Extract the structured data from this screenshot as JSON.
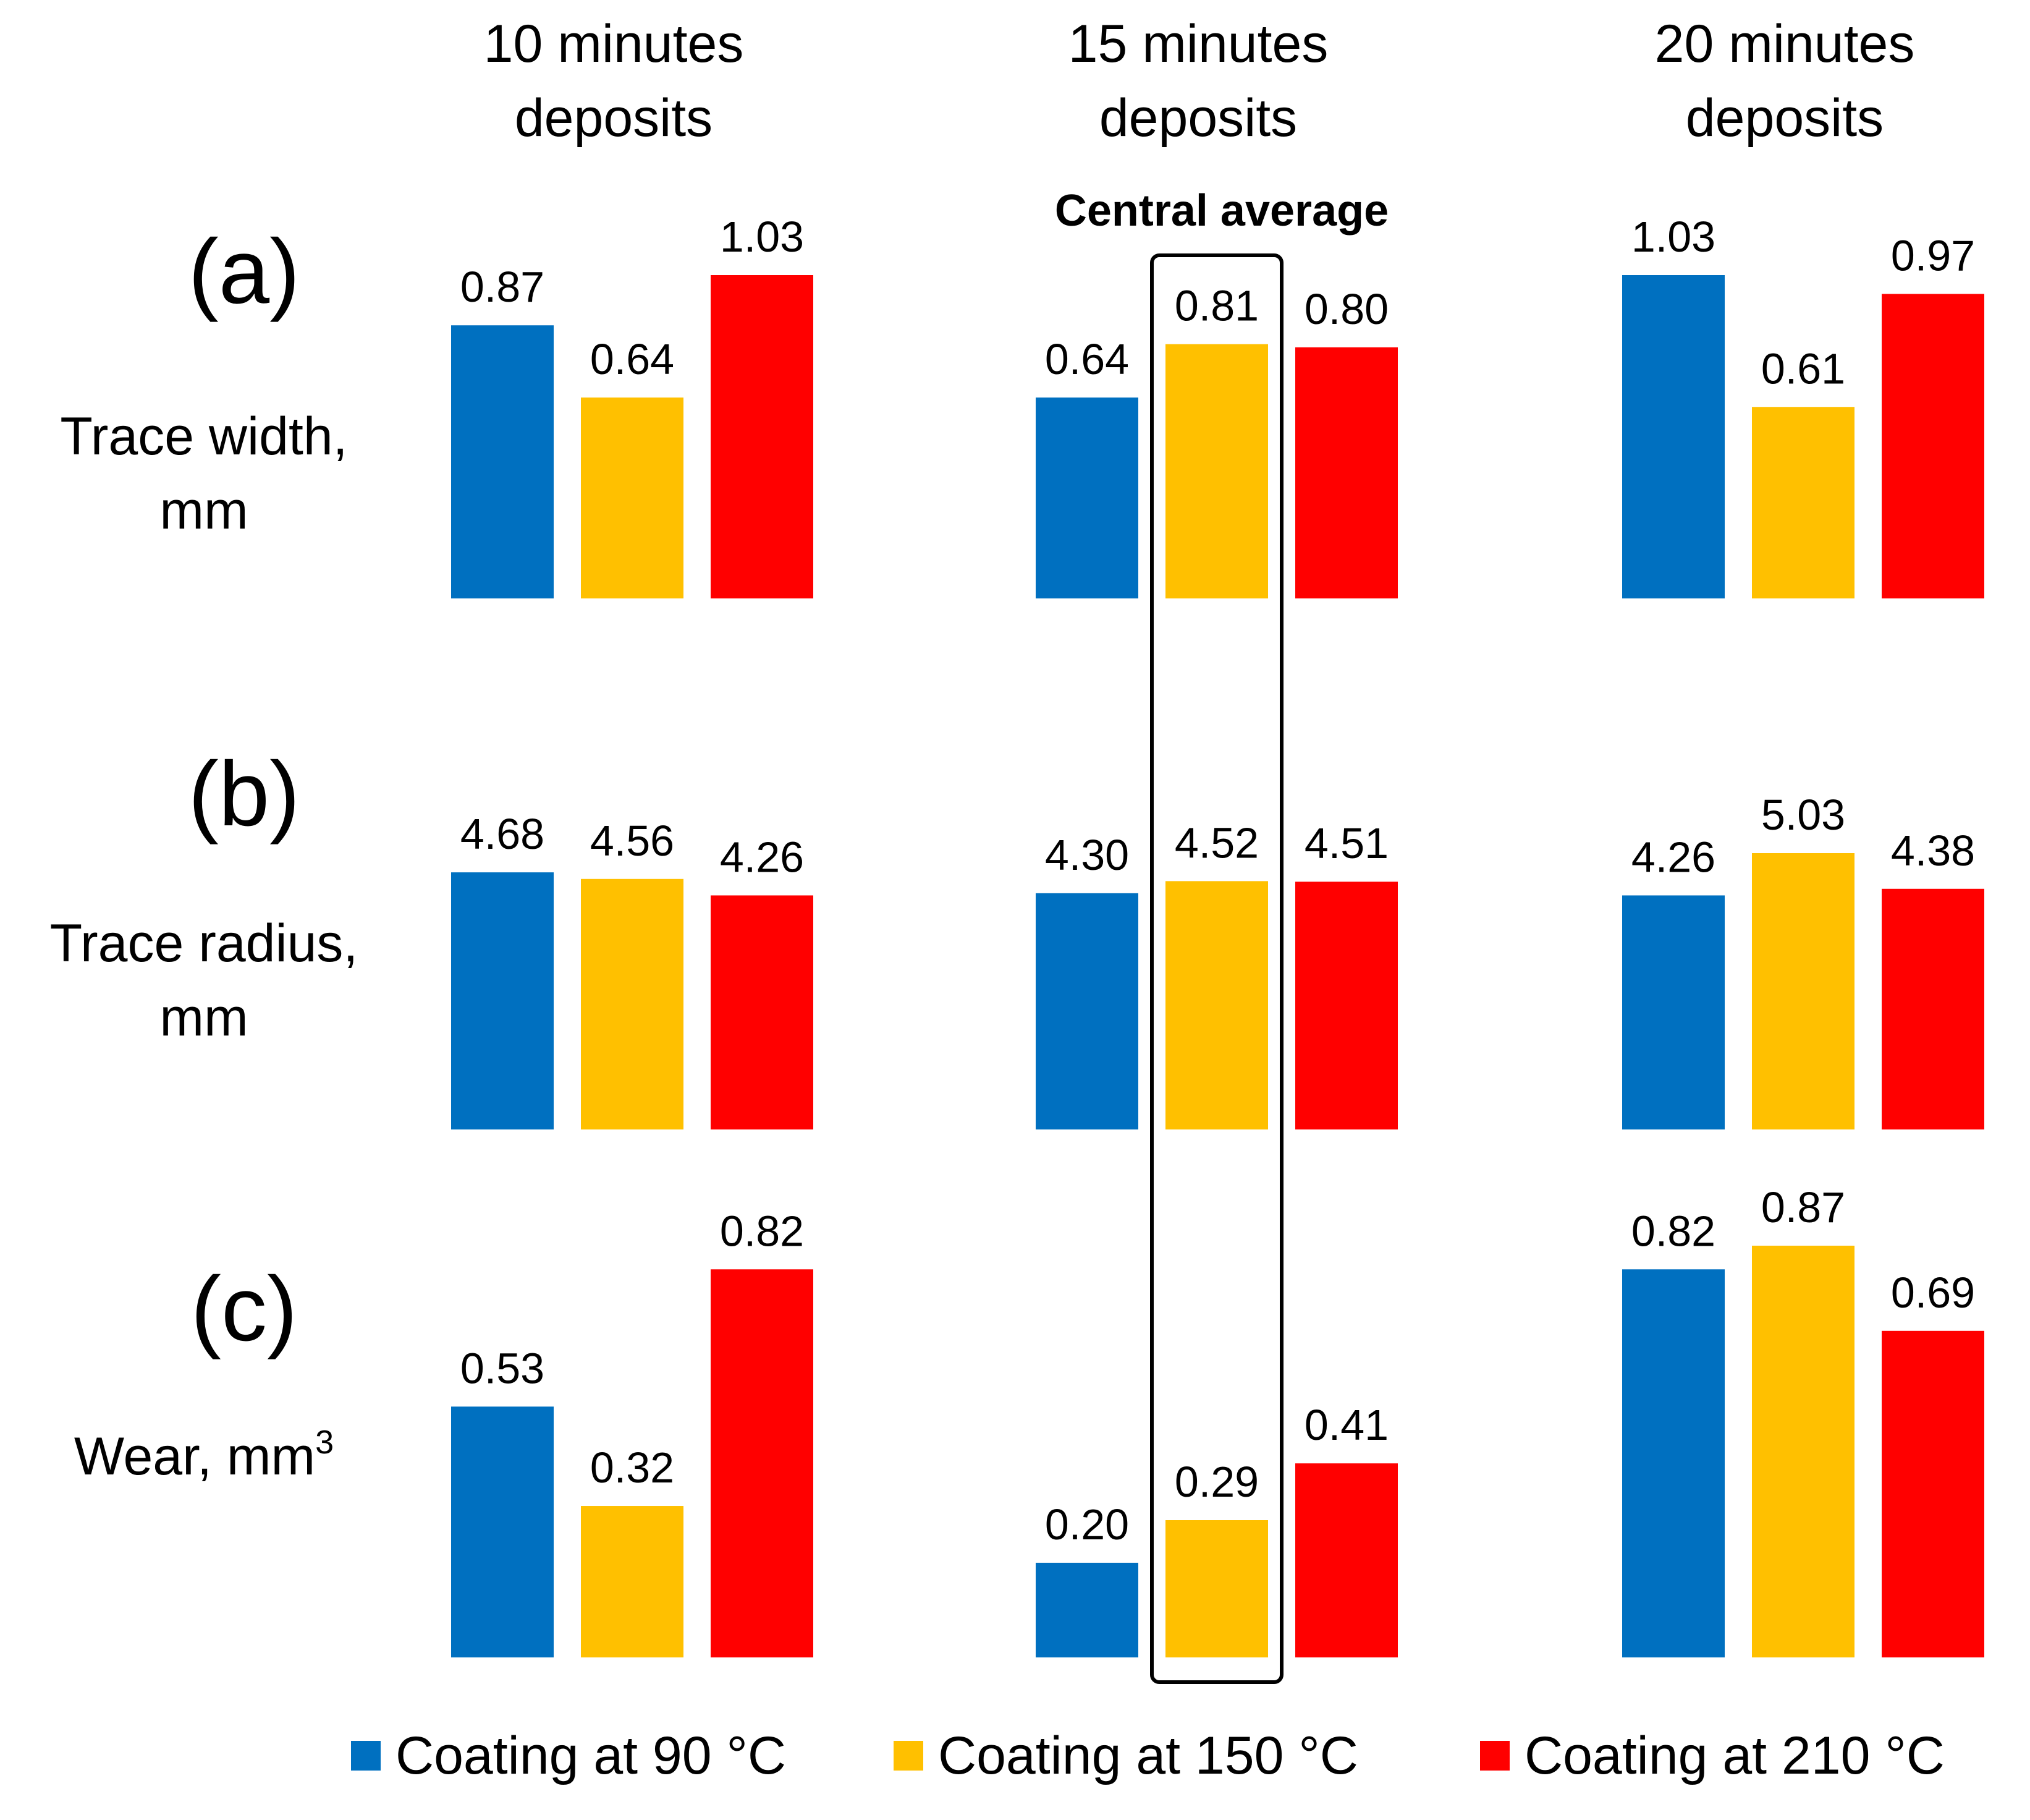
{
  "chart_data": {
    "type": "bar",
    "columns": [
      "10 minutes deposits",
      "15 minutes deposits",
      "20 minutes deposits"
    ],
    "column_header_lines": [
      [
        "10 minutes",
        "deposits"
      ],
      [
        "15 minutes",
        "deposits"
      ],
      [
        "20 minutes",
        "deposits"
      ]
    ],
    "rows": [
      {
        "letter": "(a)",
        "label_lines": [
          "Trace width,",
          "mm"
        ],
        "label_sup": "",
        "values": [
          [
            0.87,
            0.64,
            1.03
          ],
          [
            0.64,
            0.81,
            0.8
          ],
          [
            1.03,
            0.61,
            0.97
          ]
        ],
        "labels": [
          [
            "0.87",
            "0.64",
            "1.03"
          ],
          [
            "0.64",
            "0.81",
            "0.80"
          ],
          [
            "1.03",
            "0.61",
            "0.97"
          ]
        ]
      },
      {
        "letter": "(b)",
        "label_lines": [
          "Trace radius,",
          "mm"
        ],
        "label_sup": "",
        "values": [
          [
            4.68,
            4.56,
            4.26
          ],
          [
            4.3,
            4.52,
            4.51
          ],
          [
            4.26,
            5.03,
            4.38
          ]
        ],
        "labels": [
          [
            "4.68",
            "4.56",
            "4.26"
          ],
          [
            "4.30",
            "4.52",
            "4.51"
          ],
          [
            "4.26",
            "5.03",
            "4.38"
          ]
        ]
      },
      {
        "letter": "(c)",
        "label_lines": [
          "Wear, mm"
        ],
        "label_sup": "3",
        "values": [
          [
            0.53,
            0.32,
            0.82
          ],
          [
            0.2,
            0.29,
            0.41
          ],
          [
            0.82,
            0.87,
            0.69
          ]
        ],
        "labels": [
          [
            "0.53",
            "0.32",
            "0.82"
          ],
          [
            "0.20",
            "0.29",
            "0.41"
          ],
          [
            "0.82",
            "0.87",
            "0.69"
          ]
        ]
      }
    ],
    "series": [
      {
        "name": "Coating at 90 °C",
        "color": "#0070C0"
      },
      {
        "name": "Coating at 150 °C",
        "color": "#FFC000"
      },
      {
        "name": "Coating at 210 °C",
        "color": "#FF0000"
      }
    ],
    "highlight": {
      "title": "Central average",
      "column": "15 minutes deposits",
      "series": "Coating at 150 °C"
    },
    "legend_position": "bottom",
    "grid": false
  }
}
